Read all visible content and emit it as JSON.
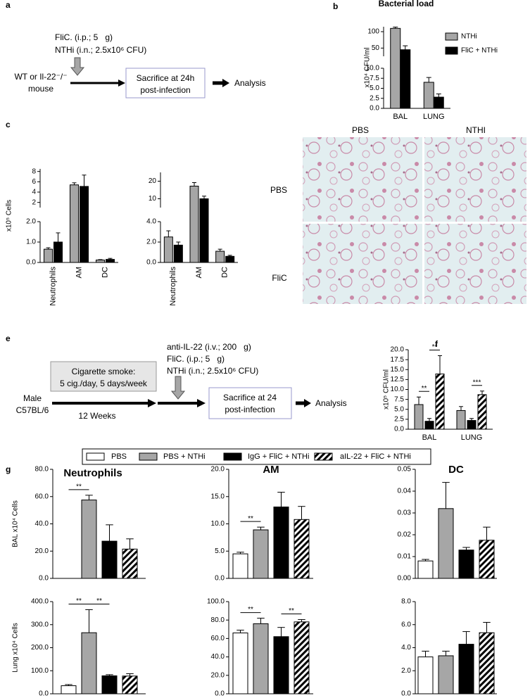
{
  "panel_labels": [
    "a",
    "b",
    "c",
    "e",
    "f",
    "g"
  ],
  "diagram_a": {
    "treatments": [
      "FliC. (i.p.; 5   g)",
      "NTHi (i.n.; 2.5x10⁶ CFU)"
    ],
    "subject": [
      "WT or Il-22⁻/⁻",
      "mouse"
    ],
    "box": [
      "Sacrifice at 24h",
      "post-infection"
    ],
    "end": "Analysis"
  },
  "histology": {
    "columns": [
      "PBS",
      "NTHI"
    ],
    "rows": [
      "PBS",
      "FliC"
    ]
  },
  "diagram_e": {
    "treatments": [
      "anti-IL-22 (i.v.; 200   g)",
      "FliC. (i.p.; 5   g)",
      "NTHi (i.n.; 2.5x10⁶ CFU)"
    ],
    "exposure": [
      "Cigarette smoke:",
      "5 cig./day, 5 days/week"
    ],
    "subject": [
      "Male",
      "C57BL/6"
    ],
    "duration": "12 Weeks",
    "box": [
      "Sacrifice at 24",
      "post-infection"
    ],
    "end": "Analysis"
  },
  "legend": [
    {
      "name": "PBS",
      "color": "#ffffff"
    },
    {
      "name": "PBS + NTHi",
      "color": "#a6a6a6"
    },
    {
      "name": "IgG + FliC + NTHi",
      "color": "#000000"
    },
    {
      "name": "aIL-22 + FliC + NTHi",
      "color": "#000000",
      "pattern": "hatch"
    }
  ],
  "chart_data": [
    {
      "type": "bar",
      "title": "Bacterial load",
      "ylabel": "x10⁴ CFU/ml",
      "categories": [
        "BAL",
        "LUNG"
      ],
      "series": [
        {
          "name": "NTHi",
          "color": "#a6a6a6",
          "values": [
            110,
            6.5
          ],
          "errors": [
            4,
            1.2
          ]
        },
        {
          "name": "FliC + NTHi",
          "color": "#000000",
          "values": [
            45,
            2.8
          ],
          "errors": [
            12,
            0.8
          ]
        }
      ],
      "segments": [
        {
          "ylim": [
            0,
            10
          ],
          "yticks": [
            {
              "value": 0,
              "label": "0.0"
            },
            2.5,
            {
              "value": 5,
              "label": "5.0"
            },
            7.5,
            {
              "value": 10,
              "label": "10.0"
            }
          ]
        },
        {
          "ylim": [
            25,
            115
          ],
          "yticks": [
            50,
            100
          ]
        }
      ]
    },
    {
      "type": "bar",
      "ylabel": "x10⁵ Cells",
      "categories": [
        "Neutrophils",
        "AM",
        "DC"
      ],
      "series": [
        {
          "color": "#a6a6a6",
          "values": [
            0.65,
            5.4,
            0.12
          ],
          "errors": [
            0.07,
            0.4,
            0.02
          ]
        },
        {
          "color": "#000000",
          "values": [
            1.0,
            5.1,
            0.15
          ],
          "errors": [
            0.45,
            2.2,
            0.05
          ]
        }
      ],
      "segments": [
        {
          "ylim": [
            0,
            2
          ],
          "yticks": [
            {
              "value": 0,
              "label": "0.0"
            },
            {
              "value": 1,
              "label": "1.0"
            },
            {
              "value": 2,
              "label": "2.0"
            }
          ]
        },
        {
          "ylim": [
            1,
            8.5
          ],
          "yticks": [
            2,
            4,
            6,
            8
          ]
        }
      ]
    },
    {
      "type": "bar",
      "categories": [
        "Neutrophils",
        "AM",
        "DC"
      ],
      "series": [
        {
          "color": "#a6a6a6",
          "values": [
            2.5,
            17.2,
            1.1
          ],
          "errors": [
            0.6,
            2,
            0.2
          ]
        },
        {
          "color": "#000000",
          "values": [
            1.7,
            10,
            0.6
          ],
          "errors": [
            0.3,
            1.5,
            0.1
          ]
        }
      ],
      "segments": [
        {
          "ylim": [
            0,
            4
          ],
          "yticks": [
            {
              "value": 0,
              "label": "0.0"
            },
            {
              "value": 2,
              "label": "2.0"
            },
            {
              "value": 4,
              "label": "4.0"
            }
          ]
        },
        {
          "ylim": [
            5,
            25
          ],
          "yticks": [
            10,
            20
          ]
        }
      ]
    },
    {
      "type": "bar",
      "ylabel": "x10⁵ CFU/ml",
      "categories": [
        "BAL",
        "LUNG"
      ],
      "series": [
        {
          "color": "#a6a6a6",
          "values": [
            6.2,
            4.7
          ],
          "errors": [
            1.9,
            1.0
          ]
        },
        {
          "color": "#000000",
          "values": [
            2.0,
            2.2
          ],
          "errors": [
            0.7,
            0.5
          ]
        },
        {
          "color": "#000000",
          "pattern": "hatch",
          "values": [
            13.9,
            8.7
          ],
          "errors": [
            4.6,
            0.9
          ]
        }
      ],
      "brackets": [
        {
          "label": "**",
          "category": 0,
          "between": [
            0,
            1
          ]
        },
        {
          "label": "**",
          "category": 0,
          "between": [
            1,
            2
          ]
        },
        {
          "label": "***",
          "category": 1,
          "between": [
            1,
            2
          ]
        }
      ],
      "segments": [
        {
          "ylim": [
            0,
            20
          ],
          "yticks": [
            {
              "value": 0,
              "label": "0.0"
            },
            2.5,
            {
              "value": 5,
              "label": "5.0"
            },
            7.5,
            {
              "value": 10,
              "label": "10.0"
            },
            12.5,
            {
              "value": 15,
              "label": "15.0"
            },
            17.5,
            {
              "value": 20,
              "label": "20.0"
            }
          ]
        }
      ]
    },
    {
      "type": "bar",
      "title": "Neutrophils",
      "ylabel": "BAL x10⁴ Cells",
      "series": [
        {
          "color": "#ffffff",
          "values": [
            0
          ],
          "errors": [
            0
          ]
        },
        {
          "color": "#a6a6a6",
          "values": [
            57.5
          ],
          "errors": [
            3.5
          ]
        },
        {
          "color": "#000000",
          "values": [
            27.3
          ],
          "errors": [
            12
          ]
        },
        {
          "color": "#000000",
          "pattern": "hatch",
          "values": [
            21.5
          ],
          "errors": [
            7.5
          ]
        }
      ],
      "brackets": [
        {
          "label": "**",
          "between": [
            0,
            1
          ]
        }
      ],
      "segments": [
        {
          "ylim": [
            0,
            80
          ],
          "yticks": [
            {
              "value": 0,
              "label": "0.0"
            },
            {
              "value": 20,
              "label": "20.0"
            },
            {
              "value": 40,
              "label": "40.0"
            },
            {
              "value": 60,
              "label": "60.0"
            },
            {
              "value": 80,
              "label": "80.0"
            }
          ]
        }
      ]
    },
    {
      "type": "bar",
      "title": "AM",
      "series": [
        {
          "color": "#ffffff",
          "values": [
            4.5
          ],
          "errors": [
            0.3
          ]
        },
        {
          "color": "#a6a6a6",
          "values": [
            8.9
          ],
          "errors": [
            0.5
          ]
        },
        {
          "color": "#000000",
          "values": [
            13.1
          ],
          "errors": [
            2.7
          ]
        },
        {
          "color": "#000000",
          "pattern": "hatch",
          "values": [
            10.8
          ],
          "errors": [
            2.4
          ]
        }
      ],
      "brackets": [
        {
          "label": "**",
          "between": [
            0,
            1
          ]
        }
      ],
      "segments": [
        {
          "ylim": [
            0,
            20
          ],
          "yticks": [
            {
              "value": 0,
              "label": "0.0"
            },
            {
              "value": 5,
              "label": "5.0"
            },
            {
              "value": 10,
              "label": "10.0"
            },
            {
              "value": 15,
              "label": "15.0"
            },
            {
              "value": 20,
              "label": "20.0"
            }
          ]
        }
      ]
    },
    {
      "type": "bar",
      "title": "DC",
      "series": [
        {
          "color": "#ffffff",
          "values": [
            0.008
          ],
          "errors": [
            0.0007
          ]
        },
        {
          "color": "#a6a6a6",
          "values": [
            0.032
          ],
          "errors": [
            0.012
          ]
        },
        {
          "color": "#000000",
          "values": [
            0.013
          ],
          "errors": [
            0.0012
          ]
        },
        {
          "color": "#000000",
          "pattern": "hatch",
          "values": [
            0.0175
          ],
          "errors": [
            0.006
          ]
        }
      ],
      "segments": [
        {
          "ylim": [
            0,
            0.05
          ],
          "yticks": [
            {
              "value": 0,
              "label": "0.00"
            },
            0.01,
            0.02,
            0.03,
            0.04,
            0.05
          ]
        }
      ]
    },
    {
      "type": "bar",
      "ylabel": "Lung x10⁴ Cells",
      "series": [
        {
          "color": "#ffffff",
          "values": [
            35
          ],
          "errors": [
            5
          ]
        },
        {
          "color": "#a6a6a6",
          "values": [
            265
          ],
          "errors": [
            100
          ]
        },
        {
          "color": "#000000",
          "values": [
            78
          ],
          "errors": [
            5
          ]
        },
        {
          "color": "#000000",
          "pattern": "hatch",
          "values": [
            77
          ],
          "errors": [
            10
          ]
        }
      ],
      "brackets": [
        {
          "label": "**",
          "between": [
            0,
            1
          ]
        },
        {
          "label": "**",
          "between": [
            1,
            2
          ]
        }
      ],
      "segments": [
        {
          "ylim": [
            0,
            400
          ],
          "yticks": [
            {
              "value": 0,
              "label": "0.0"
            },
            {
              "value": 100,
              "label": "100.0"
            },
            {
              "value": 200,
              "label": "200.0"
            },
            {
              "value": 300,
              "label": "300.0"
            },
            {
              "value": 400,
              "label": "400.0"
            }
          ]
        }
      ]
    },
    {
      "type": "bar",
      "series": [
        {
          "color": "#ffffff",
          "values": [
            66
          ],
          "errors": [
            3
          ]
        },
        {
          "color": "#a6a6a6",
          "values": [
            76
          ],
          "errors": [
            6
          ]
        },
        {
          "color": "#000000",
          "values": [
            62
          ],
          "errors": [
            10
          ]
        },
        {
          "color": "#000000",
          "pattern": "hatch",
          "values": [
            78
          ],
          "errors": [
            2.5
          ]
        }
      ],
      "brackets": [
        {
          "label": "**",
          "between": [
            0,
            1
          ]
        },
        {
          "label": "**",
          "between": [
            2,
            3
          ]
        }
      ],
      "segments": [
        {
          "ylim": [
            0,
            100
          ],
          "yticks": [
            {
              "value": 0,
              "label": "0.0"
            },
            {
              "value": 20,
              "label": "20.0"
            },
            {
              "value": 40,
              "label": "40.0"
            },
            {
              "value": 60,
              "label": "60.0"
            },
            {
              "value": 80,
              "label": "80.0"
            },
            {
              "value": 100,
              "label": "100.0"
            }
          ]
        }
      ]
    },
    {
      "type": "bar",
      "series": [
        {
          "color": "#ffffff",
          "values": [
            3.2
          ],
          "errors": [
            0.5
          ]
        },
        {
          "color": "#a6a6a6",
          "values": [
            3.3
          ],
          "errors": [
            0.4
          ]
        },
        {
          "color": "#000000",
          "values": [
            4.3
          ],
          "errors": [
            1.1
          ]
        },
        {
          "color": "#000000",
          "pattern": "hatch",
          "values": [
            5.3
          ],
          "errors": [
            0.9
          ]
        }
      ],
      "segments": [
        {
          "ylim": [
            0,
            8
          ],
          "yticks": [
            {
              "value": 0,
              "label": "0.0"
            },
            {
              "value": 2,
              "label": "2.0"
            },
            {
              "value": 4,
              "label": "4.0"
            },
            {
              "value": 6,
              "label": "6.0"
            },
            {
              "value": 8,
              "label": "8.0"
            }
          ]
        }
      ]
    }
  ]
}
